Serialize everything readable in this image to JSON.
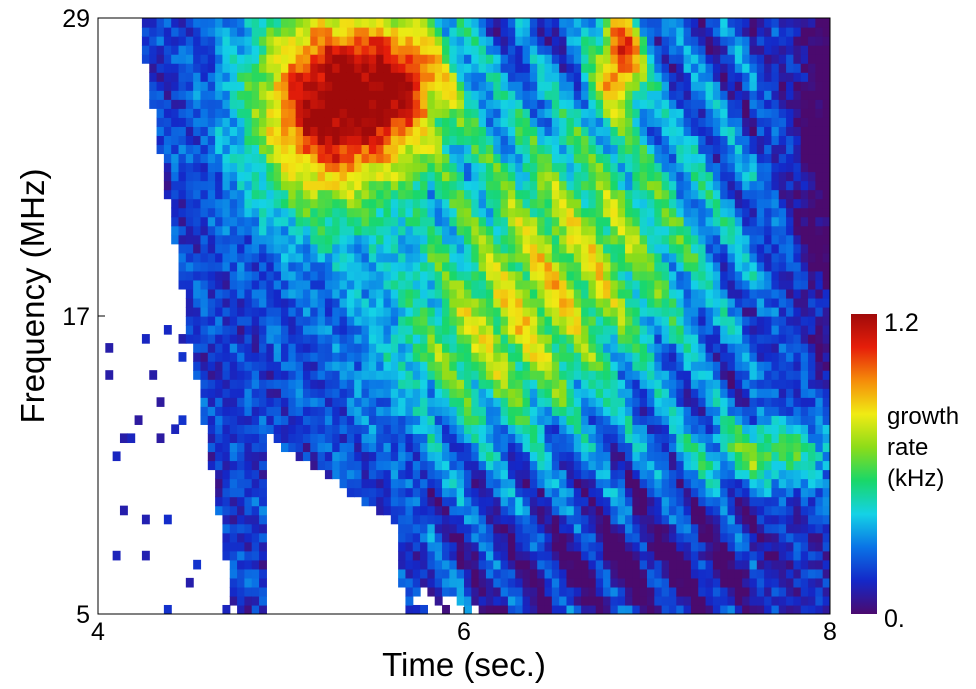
{
  "chart_data": {
    "type": "heatmap",
    "xlabel": "Time (sec.)",
    "ylabel": "Frequency (MHz)",
    "xlim": [
      4,
      8
    ],
    "ylim": [
      5,
      29
    ],
    "xticks": [
      4,
      6,
      8
    ],
    "yticks": [
      5,
      17,
      29
    ],
    "x_tick_labels": [
      "4",
      "6",
      "8"
    ],
    "y_tick_labels": [
      "5",
      "17",
      "29"
    ],
    "colorbar": {
      "title_lines": [
        "growth",
        "rate",
        "(kHz)"
      ],
      "min": 0,
      "max": 1.2,
      "min_label": "0.",
      "max_label": "1.2",
      "colors": [
        "#4b0a6e",
        "#1428c8",
        "#0a73e6",
        "#14d2e6",
        "#19d769",
        "#8cdc19",
        "#f0eb14",
        "#f58c0a",
        "#e61e0a",
        "#a00a0a"
      ]
    },
    "features": [
      {
        "description": "high growth (~1.0-1.2 kHz) broad maximum",
        "time_range": [
          4.9,
          5.6
        ],
        "freq_range": [
          20,
          29
        ]
      },
      {
        "description": "high growth streak",
        "time_range": [
          6.7,
          7.0
        ],
        "freq_range": [
          23,
          29
        ]
      },
      {
        "description": "moderate growth (~0.6-0.8 kHz) descending striations",
        "time_range": [
          5.8,
          7.4
        ],
        "freq_range": [
          12,
          24
        ]
      },
      {
        "description": "low growth (~0.1-0.2 kHz) band",
        "time_range": [
          5.4,
          8.0
        ],
        "freq_range": [
          5,
          9
        ]
      },
      {
        "description": "patchy moderate growth",
        "time_range": [
          7.3,
          8.0
        ],
        "freq_range": [
          10,
          12
        ]
      }
    ]
  }
}
